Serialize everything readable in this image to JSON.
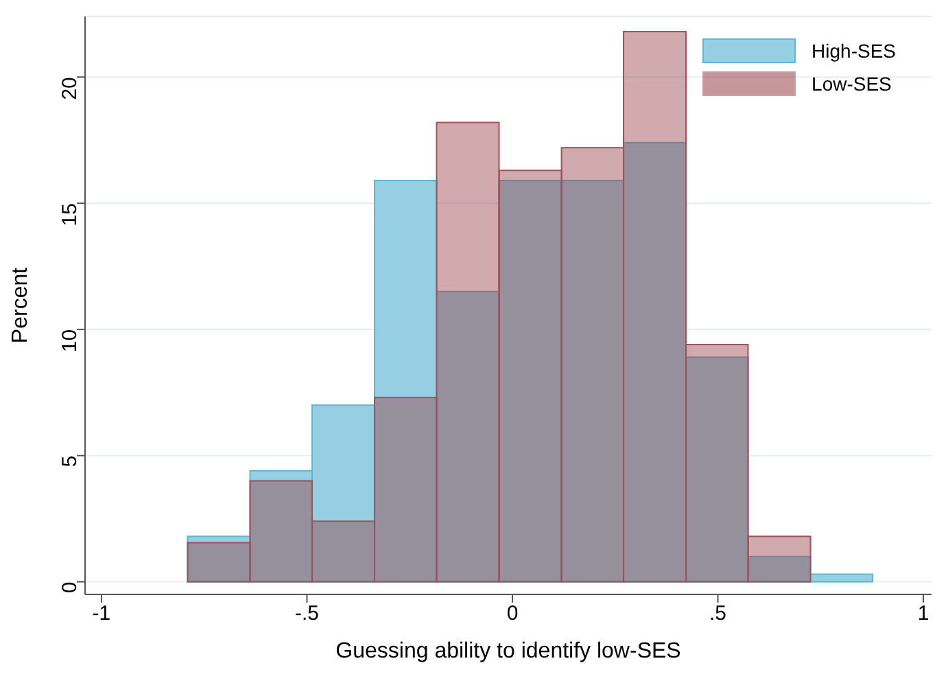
{
  "chart_data": {
    "type": "histogram",
    "xlabel": "Guessing ability to identify low-SES",
    "ylabel": "Percent",
    "bins": [
      -0.79,
      -0.638,
      -0.487,
      -0.335,
      -0.184,
      -0.032,
      0.12,
      0.271,
      0.423,
      0.574,
      0.726,
      0.877
    ],
    "series": [
      {
        "name": "High-SES",
        "color": "#96cfe1",
        "values": [
          1.8,
          4.4,
          7.0,
          15.9,
          11.5,
          15.9,
          15.9,
          17.4,
          8.9,
          1.0,
          0.3
        ]
      },
      {
        "name": "Low-SES",
        "color": "#97434a",
        "values": [
          1.55,
          4.0,
          2.4,
          7.3,
          18.2,
          16.3,
          17.2,
          21.8,
          9.4,
          1.8,
          0
        ]
      }
    ],
    "xlim": [
      -1.04,
      1.02
    ],
    "xticks": [
      -1,
      {
        "value": -0.5,
        "label": "-.5"
      },
      0,
      {
        "value": 0.5,
        "label": ".5"
      },
      1
    ],
    "ylim": [
      -0.5,
      22.4
    ],
    "yticks": [
      0,
      5,
      10,
      15,
      20
    ],
    "grid": "y",
    "legend": "top right"
  }
}
